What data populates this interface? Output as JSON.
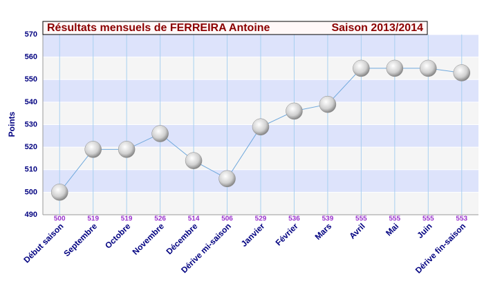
{
  "chart_data": {
    "type": "line",
    "title": "Résultats mensuels de  FERREIRA Antoine",
    "subtitle": "Saison 2013/2014",
    "y_label": "Points",
    "categories": [
      "Début saison",
      "Septembre",
      "Octobre",
      "Novembre",
      "Décembre",
      "Dérive mi-saison",
      "Janvier",
      "Février",
      "Mars",
      "Avril",
      "Mai",
      "Juin",
      "Dérive fin-saison"
    ],
    "series": [
      {
        "name": "Points",
        "color": "#6fa8dc",
        "values": [
          500,
          519,
          519,
          526,
          514,
          506,
          529,
          536,
          539,
          555,
          555,
          555,
          553
        ]
      }
    ],
    "ylim": [
      490,
      570
    ],
    "yticks": [
      490,
      500,
      510,
      520,
      530,
      540,
      550,
      560,
      570
    ],
    "grid": true
  }
}
